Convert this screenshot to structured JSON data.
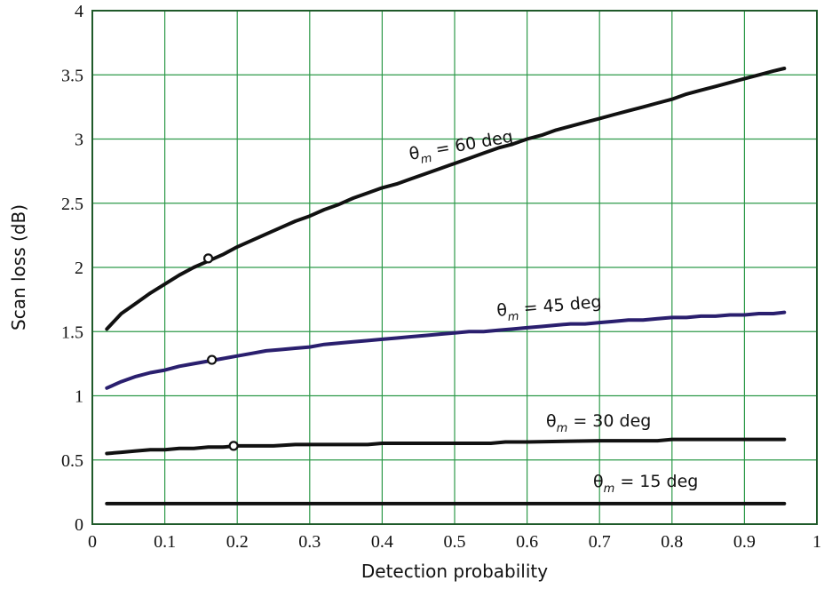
{
  "chart_data": {
    "type": "line",
    "xlabel": "Detection probability",
    "ylabel": "Scan loss (dB)",
    "xlim": [
      0,
      1
    ],
    "ylim": [
      0,
      4
    ],
    "xticks": [
      "0",
      "0.1",
      "0.2",
      "0.3",
      "0.4",
      "0.5",
      "0.6",
      "0.7",
      "0.8",
      "0.9",
      "1"
    ],
    "yticks": [
      "0",
      "0.5",
      "1",
      "1.5",
      "2",
      "2.5",
      "3",
      "3.5",
      "4"
    ],
    "grid": true,
    "grid_color": "#2e9a4a",
    "frame_color": "#1f5a2a",
    "series": [
      {
        "name": "θm = 60 deg",
        "label_main": "θ",
        "label_sub": "m",
        "label_rest": " = 60 deg",
        "color": "#111111",
        "marker_x": 0.16,
        "marker_y": 2.07,
        "x": [
          0.02,
          0.04,
          0.06,
          0.08,
          0.1,
          0.12,
          0.14,
          0.16,
          0.18,
          0.2,
          0.22,
          0.24,
          0.26,
          0.28,
          0.3,
          0.32,
          0.34,
          0.36,
          0.38,
          0.4,
          0.42,
          0.44,
          0.46,
          0.48,
          0.5,
          0.52,
          0.54,
          0.56,
          0.58,
          0.6,
          0.62,
          0.64,
          0.66,
          0.68,
          0.7,
          0.72,
          0.74,
          0.76,
          0.78,
          0.8,
          0.82,
          0.84,
          0.86,
          0.88,
          0.9,
          0.92,
          0.94,
          0.955
        ],
        "y": [
          1.52,
          1.64,
          1.72,
          1.8,
          1.87,
          1.94,
          2.0,
          2.05,
          2.1,
          2.16,
          2.21,
          2.26,
          2.31,
          2.36,
          2.4,
          2.45,
          2.49,
          2.54,
          2.58,
          2.62,
          2.65,
          2.69,
          2.73,
          2.77,
          2.81,
          2.85,
          2.89,
          2.93,
          2.96,
          3.0,
          3.03,
          3.07,
          3.1,
          3.13,
          3.16,
          3.19,
          3.22,
          3.25,
          3.28,
          3.31,
          3.35,
          3.38,
          3.41,
          3.44,
          3.47,
          3.5,
          3.53,
          3.55
        ]
      },
      {
        "name": "θm = 45 deg",
        "label_main": "θ",
        "label_sub": "m",
        "label_rest": " = 45 deg",
        "color": "#2a1f6e",
        "marker_x": 0.165,
        "marker_y": 1.28,
        "x": [
          0.02,
          0.04,
          0.06,
          0.08,
          0.1,
          0.12,
          0.14,
          0.16,
          0.18,
          0.2,
          0.22,
          0.24,
          0.26,
          0.28,
          0.3,
          0.32,
          0.34,
          0.36,
          0.38,
          0.4,
          0.42,
          0.44,
          0.46,
          0.48,
          0.5,
          0.52,
          0.54,
          0.56,
          0.58,
          0.6,
          0.62,
          0.64,
          0.66,
          0.68,
          0.7,
          0.72,
          0.74,
          0.76,
          0.78,
          0.8,
          0.82,
          0.84,
          0.86,
          0.88,
          0.9,
          0.92,
          0.94,
          0.955
        ],
        "y": [
          1.06,
          1.11,
          1.15,
          1.18,
          1.2,
          1.23,
          1.25,
          1.27,
          1.29,
          1.31,
          1.33,
          1.35,
          1.36,
          1.37,
          1.38,
          1.4,
          1.41,
          1.42,
          1.43,
          1.44,
          1.45,
          1.46,
          1.47,
          1.48,
          1.49,
          1.5,
          1.5,
          1.51,
          1.52,
          1.53,
          1.54,
          1.55,
          1.56,
          1.56,
          1.57,
          1.58,
          1.59,
          1.59,
          1.6,
          1.61,
          1.61,
          1.62,
          1.62,
          1.63,
          1.63,
          1.64,
          1.64,
          1.65
        ]
      },
      {
        "name": "θm = 30 deg",
        "label_main": "θ",
        "label_sub": "m",
        "label_rest": " = 30 deg",
        "color": "#111111",
        "marker_x": 0.195,
        "marker_y": 0.61,
        "x": [
          0.02,
          0.04,
          0.06,
          0.08,
          0.1,
          0.12,
          0.14,
          0.16,
          0.18,
          0.2,
          0.25,
          0.28,
          0.35,
          0.38,
          0.4,
          0.5,
          0.55,
          0.57,
          0.6,
          0.7,
          0.78,
          0.8,
          0.9,
          0.955
        ],
        "y": [
          0.55,
          0.56,
          0.57,
          0.58,
          0.58,
          0.59,
          0.59,
          0.6,
          0.6,
          0.61,
          0.61,
          0.62,
          0.62,
          0.62,
          0.63,
          0.63,
          0.63,
          0.64,
          0.64,
          0.65,
          0.65,
          0.66,
          0.66,
          0.66
        ]
      },
      {
        "name": "θm = 15 deg",
        "label_main": "θ",
        "label_sub": "m",
        "label_rest": " = 15 deg",
        "color": "#111111",
        "x": [
          0.02,
          0.955
        ],
        "y": [
          0.16,
          0.16
        ]
      }
    ]
  }
}
